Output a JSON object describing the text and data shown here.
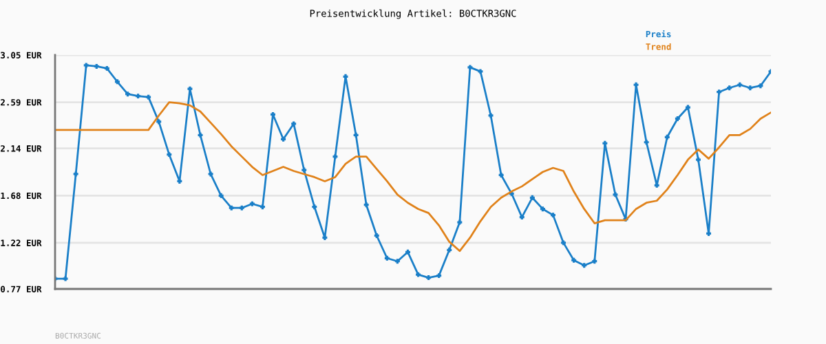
{
  "chart_data": {
    "type": "line",
    "title": "Preisentwicklung Artikel: B0CTKR3GNC",
    "categories": [
      null,
      null,
      null,
      null,
      null,
      null,
      null,
      null,
      null,
      null,
      null,
      null,
      null,
      null,
      null,
      null,
      null,
      null,
      null,
      null,
      null,
      null,
      null,
      null,
      null,
      null,
      null,
      null,
      null,
      null,
      null,
      null,
      null,
      null,
      null,
      null,
      null,
      null,
      null,
      null,
      null,
      null,
      null,
      null,
      null,
      null,
      null,
      null,
      null,
      null,
      null,
      null,
      null,
      null,
      null,
      null,
      null,
      null,
      null,
      null,
      null,
      null,
      null,
      null,
      null,
      null,
      null,
      null,
      null,
      null
    ],
    "series": [
      {
        "name": "Preis",
        "color": "#1a7fc8",
        "marker": "cross",
        "values": [
          0.87,
          0.87,
          1.89,
          2.95,
          2.94,
          2.92,
          2.79,
          2.67,
          2.65,
          2.64,
          2.4,
          2.08,
          1.82,
          2.72,
          2.27,
          1.89,
          1.68,
          1.56,
          1.56,
          1.6,
          1.57,
          2.47,
          2.23,
          2.38,
          1.93,
          1.57,
          1.27,
          2.06,
          2.84,
          2.27,
          1.59,
          1.29,
          1.07,
          1.04,
          1.13,
          0.91,
          0.88,
          0.9,
          1.15,
          1.42,
          2.93,
          2.89,
          2.46,
          1.88,
          1.7,
          1.47,
          1.66,
          1.55,
          1.49,
          1.22,
          1.05,
          1.0,
          1.04,
          2.19,
          1.69,
          1.45,
          2.76,
          2.2,
          1.78,
          2.25,
          2.43,
          2.54,
          2.03,
          1.31,
          2.69,
          2.73,
          2.76,
          2.73,
          2.75,
          2.89
        ]
      },
      {
        "name": "Trend",
        "color": "#e0821a",
        "marker": "none",
        "values": [
          2.32,
          2.32,
          2.32,
          2.32,
          2.32,
          2.32,
          2.32,
          2.32,
          2.32,
          2.32,
          2.46,
          2.59,
          2.58,
          2.56,
          2.5,
          2.39,
          2.28,
          2.16,
          2.06,
          1.96,
          1.88,
          1.92,
          1.96,
          1.92,
          1.89,
          1.86,
          1.82,
          1.86,
          1.99,
          2.06,
          2.06,
          1.94,
          1.82,
          1.69,
          1.61,
          1.55,
          1.51,
          1.39,
          1.23,
          1.14,
          1.27,
          1.43,
          1.57,
          1.66,
          1.72,
          1.77,
          1.84,
          1.91,
          1.95,
          1.92,
          1.72,
          1.55,
          1.41,
          1.44,
          1.44,
          1.44,
          1.55,
          1.61,
          1.63,
          1.74,
          1.88,
          2.03,
          2.13,
          2.04,
          2.15,
          2.27,
          2.27,
          2.33,
          2.43,
          2.49
        ]
      }
    ],
    "ylim": [
      0.77,
      3.05
    ],
    "yticks": [
      {
        "value": 0.77,
        "label": "0.77 EUR"
      },
      {
        "value": 1.22,
        "label": "1.22 EUR"
      },
      {
        "value": 1.68,
        "label": "1.68 EUR"
      },
      {
        "value": 2.14,
        "label": "2.14 EUR"
      },
      {
        "value": 2.59,
        "label": "2.59 EUR"
      },
      {
        "value": 3.05,
        "label": "3.05 EUR"
      }
    ],
    "grid": "y",
    "legend": "top right",
    "line_style": "solid",
    "annotations": [
      "B0CTKR3GNC"
    ]
  }
}
